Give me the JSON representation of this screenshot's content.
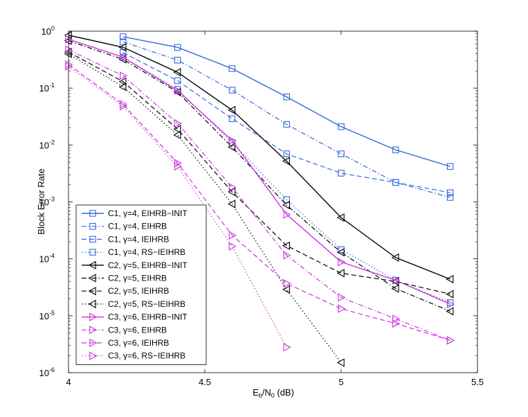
{
  "chart_data": {
    "type": "line",
    "title": "",
    "xlabel": {
      "main": "E",
      "sub1": "b",
      "mid": "/N",
      "sub2": "0",
      "tail": " (dB)"
    },
    "ylabel": "Block Error Rate",
    "xlim": [
      4,
      5.5
    ],
    "ylim": [
      1e-06,
      1
    ],
    "yscale": "log",
    "grid": false,
    "legend_position": "bottom-left",
    "x_ticks": [
      {
        "value": 4,
        "label": "4"
      },
      {
        "value": 4.5,
        "label": "4.5"
      },
      {
        "value": 5,
        "label": "5"
      },
      {
        "value": 5.5,
        "label": "5.5"
      }
    ],
    "y_ticks": [
      {
        "value": 1,
        "base": "10",
        "exp": "0"
      },
      {
        "value": 0.1,
        "base": "10",
        "exp": "-1"
      },
      {
        "value": 0.01,
        "base": "10",
        "exp": "-2"
      },
      {
        "value": 0.001,
        "base": "10",
        "exp": "-3"
      },
      {
        "value": 0.0001,
        "base": "10",
        "exp": "-4"
      },
      {
        "value": 1e-05,
        "base": "10",
        "exp": "-5"
      },
      {
        "value": 1e-06,
        "base": "10",
        "exp": "-6"
      }
    ],
    "series": [
      {
        "name": "C1, γ=4, EIHRB−INIT",
        "color": "#3366dd",
        "dash": "solid",
        "marker": "square",
        "x": [
          4.2,
          4.4,
          4.6,
          4.8,
          5.0,
          5.2,
          5.4
        ],
        "y": [
          0.8,
          0.52,
          0.22,
          0.07,
          0.021,
          0.0082,
          0.0042
        ]
      },
      {
        "name": "C1, γ=4, EIHRB",
        "color": "#3366dd",
        "dash": "dashdot",
        "marker": "square",
        "x": [
          4.2,
          4.4,
          4.6,
          4.8,
          5.0,
          5.2,
          5.4
        ],
        "y": [
          0.65,
          0.31,
          0.092,
          0.023,
          0.007,
          0.0022,
          0.0012
        ]
      },
      {
        "name": "C1, γ=4, IEIHRB",
        "color": "#3366dd",
        "dash": "dashed",
        "marker": "square",
        "x": [
          4.2,
          4.4,
          4.6,
          4.8,
          5.0,
          5.2,
          5.4
        ],
        "y": [
          0.42,
          0.135,
          0.029,
          0.007,
          0.0032,
          0.0022,
          0.00145
        ]
      },
      {
        "name": "C1, γ=4, RS−IEIHRB",
        "color": "#3366dd",
        "dash": "dotted",
        "marker": "square",
        "x": [
          4.2,
          4.4,
          4.6,
          4.8,
          5.0,
          5.2,
          5.4
        ],
        "y": [
          0.35,
          0.095,
          0.011,
          0.0011,
          0.000145,
          4.2e-05,
          1.7e-05
        ]
      },
      {
        "name": "C2, γ=5, EIHRB−INIT",
        "color": "#000000",
        "dash": "solid",
        "marker": "triangle-left",
        "x": [
          4.0,
          4.2,
          4.4,
          4.6,
          4.8,
          5.0,
          5.2,
          5.4
        ],
        "y": [
          0.85,
          0.52,
          0.19,
          0.041,
          0.0052,
          0.00053,
          0.000105,
          4.4e-05
        ]
      },
      {
        "name": "C2, γ=5, EIHRB",
        "color": "#000000",
        "dash": "dashdot",
        "marker": "triangle-left",
        "x": [
          4.0,
          4.2,
          4.4,
          4.6,
          4.8,
          5.0,
          5.2,
          5.4
        ],
        "y": [
          0.68,
          0.32,
          0.085,
          0.0092,
          0.00088,
          0.00013,
          3e-05,
          1.2e-05
        ]
      },
      {
        "name": "C2, γ=5, IEIHRB",
        "color": "#000000",
        "dash": "dashed",
        "marker": "triangle-left",
        "x": [
          4.0,
          4.2,
          4.4,
          4.6,
          4.8,
          5.0,
          5.2,
          5.4
        ],
        "y": [
          0.43,
          0.13,
          0.019,
          0.0015,
          0.00017,
          5.6e-05,
          4e-05,
          2.4e-05
        ]
      },
      {
        "name": "C2, γ=5, RS−IEIHRB",
        "color": "#000000",
        "dash": "dotted",
        "marker": "triangle-left",
        "x": [
          4.0,
          4.2,
          4.4,
          4.6,
          4.8,
          5.0
        ],
        "y": [
          0.4,
          0.105,
          0.015,
          0.00092,
          2.9e-05,
          1.5e-06
        ]
      },
      {
        "name": "C3, γ=6, EIHRB−INIT",
        "color": "#cc33dd",
        "dash": "solid",
        "marker": "triangle-right",
        "x": [
          4.0,
          4.2,
          4.4,
          4.6,
          4.8,
          5.0,
          5.2,
          5.4
        ],
        "y": [
          0.72,
          0.35,
          0.09,
          0.012,
          0.0006,
          8.8e-05,
          4.2e-05,
          1.6e-05
        ]
      },
      {
        "name": "C3, γ=6, EIHRB",
        "color": "#cc33dd",
        "dash": "dashdot",
        "marker": "triangle-right",
        "x": [
          4.0,
          4.2,
          4.4,
          4.6,
          4.8,
          5.0,
          5.2,
          5.4
        ],
        "y": [
          0.47,
          0.165,
          0.024,
          0.0018,
          0.000115,
          2.1e-05,
          8.8e-06,
          3.7e-06
        ]
      },
      {
        "name": "C3, γ=6, IEIHRB",
        "color": "#cc33dd",
        "dash": "dashed",
        "marker": "triangle-right",
        "x": [
          4.0,
          4.2,
          4.4,
          4.6,
          4.8,
          5.0,
          5.2,
          5.4
        ],
        "y": [
          0.26,
          0.052,
          0.0048,
          0.00026,
          3.7e-05,
          1.33e-05,
          7.3e-06,
          3.7e-06
        ]
      },
      {
        "name": "C3, γ=6, RS−IEIHRB",
        "color": "#cc33dd",
        "dash": "dotted",
        "marker": "triangle-right",
        "x": [
          4.0,
          4.2,
          4.4,
          4.6,
          4.8
        ],
        "y": [
          0.24,
          0.048,
          0.0042,
          0.000165,
          2.8e-06
        ]
      }
    ]
  }
}
